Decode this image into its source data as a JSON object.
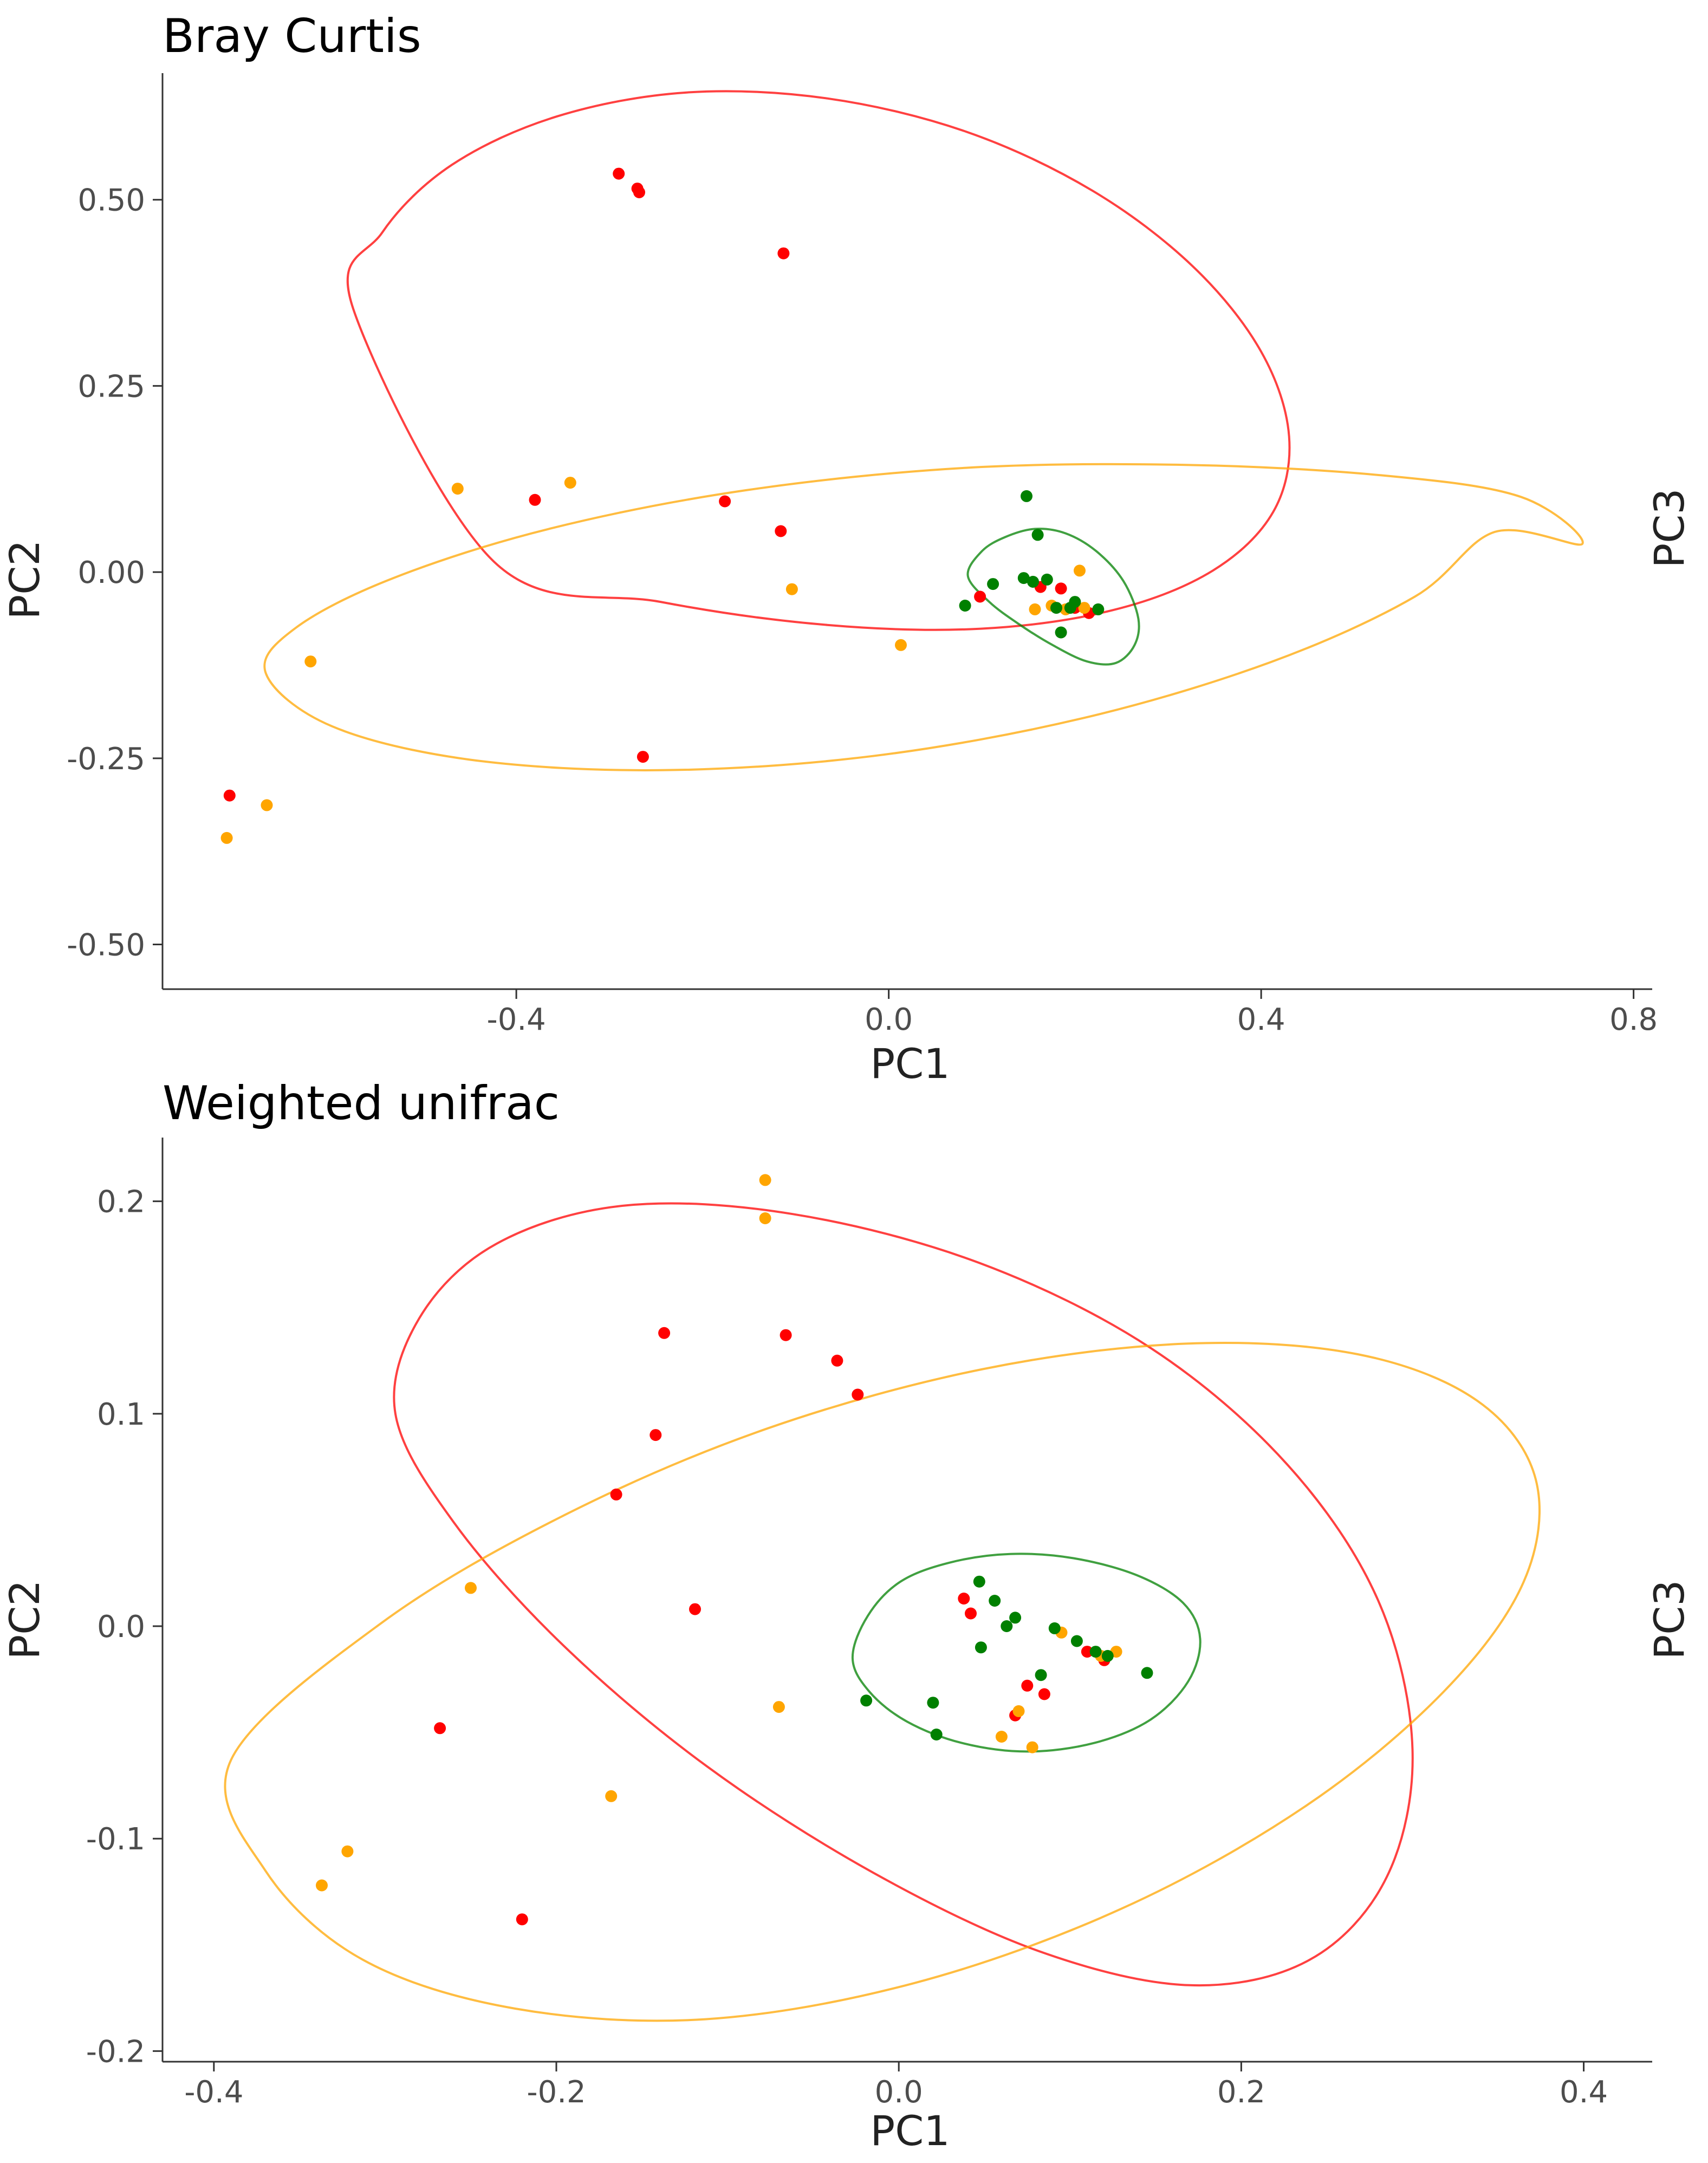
{
  "chart_data": [
    {
      "type": "scatter",
      "title": "Bray Curtis",
      "xlabel": "PC1",
      "ylabel": "PC2",
      "right_label": "PC3",
      "xlim": [
        -0.78,
        0.82
      ],
      "ylim": [
        -0.56,
        0.67
      ],
      "xticks": [
        -0.4,
        0.0,
        0.4,
        0.8
      ],
      "xtick_labels": [
        "-0.4",
        "0.0",
        "0.4",
        "0.8"
      ],
      "yticks": [
        -0.5,
        -0.25,
        0.0,
        0.25,
        0.5
      ],
      "ytick_labels": [
        "-0.50",
        "-0.25",
        "0.00",
        "0.25",
        "0.50"
      ],
      "grid": false,
      "series": [
        {
          "name": "red",
          "color": "#ff0000",
          "points": [
            [
              -0.29,
              0.535
            ],
            [
              -0.27,
              0.515
            ],
            [
              -0.268,
              0.51
            ],
            [
              -0.113,
              0.428
            ],
            [
              -0.38,
              0.097
            ],
            [
              -0.176,
              0.095
            ],
            [
              -0.116,
              0.055
            ],
            [
              0.098,
              -0.033
            ],
            [
              0.163,
              -0.02
            ],
            [
              0.185,
              -0.022
            ],
            [
              0.2,
              -0.048
            ],
            [
              0.215,
              -0.055
            ],
            [
              -0.264,
              -0.248
            ],
            [
              -0.708,
              -0.3
            ]
          ]
        },
        {
          "name": "orange",
          "color": "#ffa500",
          "points": [
            [
              -0.463,
              0.112
            ],
            [
              -0.342,
              0.12
            ],
            [
              -0.104,
              -0.023
            ],
            [
              0.013,
              -0.098
            ],
            [
              -0.621,
              -0.12
            ],
            [
              -0.668,
              -0.313
            ],
            [
              -0.711,
              -0.357
            ],
            [
              0.157,
              -0.05
            ],
            [
              0.175,
              -0.045
            ],
            [
              0.19,
              -0.05
            ],
            [
              0.205,
              0.002
            ],
            [
              0.21,
              -0.048
            ]
          ]
        },
        {
          "name": "green",
          "color": "#008000",
          "points": [
            [
              0.148,
              0.102
            ],
            [
              0.16,
              0.05
            ],
            [
              0.082,
              -0.045
            ],
            [
              0.112,
              -0.016
            ],
            [
              0.145,
              -0.008
            ],
            [
              0.155,
              -0.013
            ],
            [
              0.17,
              -0.01
            ],
            [
              0.18,
              -0.048
            ],
            [
              0.195,
              -0.048
            ],
            [
              0.185,
              -0.081
            ],
            [
              0.2,
              -0.04
            ],
            [
              0.225,
              -0.05
            ]
          ]
        }
      ],
      "ellipses": [
        {
          "name": "red",
          "color": "#ff0000",
          "points": [
            [
              -0.575,
              0.353
            ],
            [
              -0.544,
              0.456
            ],
            [
              -0.469,
              0.547
            ],
            [
              -0.356,
              0.612
            ],
            [
              -0.217,
              0.644
            ],
            [
              -0.066,
              0.636
            ],
            [
              0.084,
              0.591
            ],
            [
              0.219,
              0.512
            ],
            [
              0.327,
              0.41
            ],
            [
              0.4,
              0.296
            ],
            [
              0.43,
              0.182
            ],
            [
              0.413,
              0.081
            ],
            [
              0.348,
              0.002
            ],
            [
              0.241,
              -0.051
            ],
            [
              0.099,
              -0.076
            ],
            [
              -0.066,
              -0.071
            ],
            [
              -0.245,
              -0.04
            ],
            [
              -0.424,
              0.014
            ]
          ]
        },
        {
          "name": "orange",
          "color": "#ffa500",
          "points": [
            [
              -0.669,
              -0.136
            ],
            [
              -0.598,
              -0.207
            ],
            [
              -0.449,
              -0.252
            ],
            [
              -0.245,
              -0.266
            ],
            [
              -0.017,
              -0.247
            ],
            [
              0.209,
              -0.196
            ],
            [
              0.41,
              -0.121
            ],
            [
              0.565,
              -0.033
            ],
            [
              0.651,
              0.054
            ],
            [
              0.745,
              0.038
            ],
            [
              0.679,
              0.101
            ],
            [
              0.529,
              0.13
            ],
            [
              0.316,
              0.144
            ],
            [
              0.083,
              0.14
            ],
            [
              -0.153,
              0.11
            ],
            [
              -0.365,
              0.058
            ],
            [
              -0.532,
              -0.008
            ],
            [
              -0.637,
              -0.075
            ]
          ]
        },
        {
          "name": "green",
          "color": "#008000",
          "points": [
            [
              0.085,
              -0.005
            ],
            [
              0.1,
              0.028
            ],
            [
              0.125,
              0.047
            ],
            [
              0.157,
              0.058
            ],
            [
              0.19,
              0.052
            ],
            [
              0.223,
              0.028
            ],
            [
              0.252,
              -0.012
            ],
            [
              0.268,
              -0.062
            ],
            [
              0.264,
              -0.098
            ],
            [
              0.244,
              -0.122
            ],
            [
              0.213,
              -0.12
            ],
            [
              0.176,
              -0.098
            ],
            [
              0.14,
              -0.07
            ],
            [
              0.108,
              -0.04
            ]
          ]
        }
      ]
    },
    {
      "type": "scatter",
      "title": "Weighted unifrac",
      "xlabel": "PC1",
      "ylabel": "PC2",
      "right_label": "PC3",
      "xlim": [
        -0.43,
        0.44
      ],
      "ylim": [
        -0.205,
        0.23
      ],
      "xticks": [
        -0.4,
        -0.2,
        0.0,
        0.2,
        0.4
      ],
      "xtick_labels": [
        "-0.4",
        "-0.2",
        "0.0",
        "0.2",
        "0.4"
      ],
      "yticks": [
        -0.2,
        -0.1,
        0.0,
        0.1,
        0.2
      ],
      "ytick_labels": [
        "-0.2",
        "-0.1",
        "0.0",
        "0.1",
        "0.2"
      ],
      "grid": false,
      "series": [
        {
          "name": "red",
          "color": "#ff0000",
          "points": [
            [
              -0.137,
              0.138
            ],
            [
              -0.066,
              0.137
            ],
            [
              -0.036,
              0.125
            ],
            [
              -0.024,
              0.109
            ],
            [
              -0.142,
              0.09
            ],
            [
              -0.165,
              0.062
            ],
            [
              -0.119,
              0.008
            ],
            [
              0.038,
              0.013
            ],
            [
              0.042,
              0.006
            ],
            [
              -0.268,
              -0.048
            ],
            [
              -0.22,
              -0.138
            ],
            [
              0.075,
              -0.028
            ],
            [
              0.085,
              -0.032
            ],
            [
              0.11,
              -0.012
            ],
            [
              0.12,
              -0.016
            ],
            [
              0.068,
              -0.042
            ]
          ]
        },
        {
          "name": "orange",
          "color": "#ffa500",
          "points": [
            [
              -0.078,
              0.21
            ],
            [
              -0.078,
              0.192
            ],
            [
              -0.25,
              0.018
            ],
            [
              -0.07,
              -0.038
            ],
            [
              -0.168,
              -0.08
            ],
            [
              -0.322,
              -0.106
            ],
            [
              -0.337,
              -0.122
            ],
            [
              0.06,
              -0.052
            ],
            [
              0.078,
              -0.057
            ],
            [
              0.07,
              -0.04
            ],
            [
              0.095,
              -0.003
            ],
            [
              0.118,
              -0.014
            ],
            [
              0.127,
              -0.012
            ]
          ]
        },
        {
          "name": "green",
          "color": "#008000",
          "points": [
            [
              0.047,
              0.021
            ],
            [
              0.056,
              0.012
            ],
            [
              0.068,
              0.004
            ],
            [
              0.063,
              0.0
            ],
            [
              0.048,
              -0.01
            ],
            [
              0.091,
              -0.001
            ],
            [
              0.104,
              -0.007
            ],
            [
              0.115,
              -0.012
            ],
            [
              0.122,
              -0.014
            ],
            [
              0.145,
              -0.022
            ],
            [
              0.083,
              -0.023
            ],
            [
              -0.019,
              -0.035
            ],
            [
              0.02,
              -0.036
            ],
            [
              0.022,
              -0.051
            ]
          ]
        }
      ],
      "ellipses": [
        {
          "name": "red",
          "color": "#ff0000",
          "points": [
            [
              -0.294,
              0.1
            ],
            [
              -0.28,
              0.145
            ],
            [
              -0.235,
              0.18
            ],
            [
              -0.16,
              0.198
            ],
            [
              -0.062,
              0.194
            ],
            [
              0.047,
              0.171
            ],
            [
              0.147,
              0.131
            ],
            [
              0.227,
              0.076
            ],
            [
              0.28,
              0.012
            ],
            [
              0.3,
              -0.058
            ],
            [
              0.285,
              -0.118
            ],
            [
              0.24,
              -0.157
            ],
            [
              0.17,
              -0.169
            ],
            [
              0.082,
              -0.153
            ],
            [
              -0.015,
              -0.116
            ],
            [
              -0.112,
              -0.066
            ],
            [
              -0.196,
              -0.009
            ],
            [
              -0.26,
              0.049
            ]
          ]
        },
        {
          "name": "orange",
          "color": "#ffa500",
          "points": [
            [
              -0.39,
              -0.063
            ],
            [
              -0.37,
              -0.115
            ],
            [
              -0.313,
              -0.157
            ],
            [
              -0.224,
              -0.18
            ],
            [
              -0.113,
              -0.185
            ],
            [
              0.009,
              -0.168
            ],
            [
              0.13,
              -0.133
            ],
            [
              0.237,
              -0.085
            ],
            [
              0.318,
              -0.031
            ],
            [
              0.365,
              0.021
            ],
            [
              0.372,
              0.069
            ],
            [
              0.338,
              0.106
            ],
            [
              0.268,
              0.128
            ],
            [
              0.168,
              0.133
            ],
            [
              0.049,
              0.121
            ],
            [
              -0.077,
              0.093
            ],
            [
              -0.196,
              0.052
            ],
            [
              -0.303,
              0.001
            ]
          ]
        },
        {
          "name": "green",
          "color": "#008000",
          "points": [
            [
              -0.027,
              -0.015
            ],
            [
              -0.018,
              0.005
            ],
            [
              0.001,
              0.021
            ],
            [
              0.03,
              0.03
            ],
            [
              0.065,
              0.034
            ],
            [
              0.102,
              0.032
            ],
            [
              0.139,
              0.024
            ],
            [
              0.166,
              0.011
            ],
            [
              0.176,
              -0.006
            ],
            [
              0.169,
              -0.026
            ],
            [
              0.147,
              -0.044
            ],
            [
              0.114,
              -0.055
            ],
            [
              0.075,
              -0.059
            ],
            [
              0.037,
              -0.055
            ],
            [
              0.005,
              -0.045
            ],
            [
              -0.017,
              -0.031
            ]
          ]
        }
      ]
    }
  ]
}
